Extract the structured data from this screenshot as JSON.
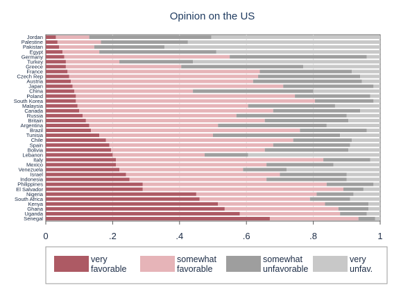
{
  "chart_data": {
    "type": "bar",
    "orientation": "horizontal",
    "stacked": true,
    "title": "Opinion on the US",
    "categories": [
      "Jordan",
      "Palestine",
      "Pakistan",
      "Egypt",
      "Germany",
      "Turkey",
      "Greece",
      "France",
      "Czech Rep",
      "Austria",
      "Japan",
      "China",
      "Poland",
      "South Korea",
      "Malaysia",
      "Canada",
      "Russia",
      "Britain",
      "Argentina",
      "Brazil",
      "Tunisia",
      "Chile",
      "Spain",
      "Bolivia",
      "Lebanon",
      "Italy",
      "Mexico",
      "Venezuela",
      "Israel",
      "Indonesia",
      "Philippines",
      "El Salvador",
      "Nigeria",
      "South Africa",
      "Kenya",
      "Ghana",
      "Uganda",
      "Senegal"
    ],
    "series": [
      {
        "name": "very favorable",
        "color": "#ad5a64",
        "values": [
          0.03,
          0.035,
          0.04,
          0.05,
          0.055,
          0.06,
          0.06,
          0.065,
          0.07,
          0.075,
          0.08,
          0.085,
          0.09,
          0.09,
          0.095,
          0.1,
          0.11,
          0.12,
          0.13,
          0.135,
          0.16,
          0.18,
          0.19,
          0.195,
          0.2,
          0.21,
          0.21,
          0.22,
          0.24,
          0.25,
          0.29,
          0.29,
          0.45,
          0.46,
          0.515,
          0.535,
          0.58,
          0.67
        ]
      },
      {
        "name": "somewhat favorable",
        "color": "#e6b4b8",
        "values": [
          0.1,
          0.13,
          0.105,
          0.11,
          0.495,
          0.16,
          0.345,
          0.575,
          0.565,
          0.545,
          0.63,
          0.355,
          0.655,
          0.715,
          0.51,
          0.58,
          0.46,
          0.535,
          0.385,
          0.625,
          0.34,
          0.56,
          0.49,
          0.46,
          0.275,
          0.62,
          0.45,
          0.37,
          0.46,
          0.41,
          0.55,
          0.6,
          0.36,
          0.33,
          0.32,
          0.34,
          0.3,
          0.265
        ]
      },
      {
        "name": "somewhat unfavorable",
        "color": "#9e9e9e",
        "values": [
          0.365,
          0.26,
          0.21,
          0.35,
          0.41,
          0.22,
          0.365,
          0.275,
          0.305,
          0.325,
          0.27,
          0.36,
          0.225,
          0.175,
          0.26,
          0.26,
          0.33,
          0.25,
          0.325,
          0.2,
          0.38,
          0.175,
          0.23,
          0.25,
          0.13,
          0.14,
          0.2,
          0.13,
          0.2,
          0.24,
          0.14,
          0.06,
          0.11,
          0.12,
          0.13,
          0.09,
          0.08,
          0.05
        ]
      },
      {
        "name": "very unfav.",
        "color": "#c8c8c8",
        "values": [
          0.505,
          0.575,
          0.645,
          0.49,
          0.04,
          0.56,
          0.23,
          0.085,
          0.06,
          0.055,
          0.02,
          0.2,
          0.03,
          0.02,
          0.135,
          0.06,
          0.1,
          0.095,
          0.16,
          0.04,
          0.12,
          0.085,
          0.09,
          0.095,
          0.395,
          0.03,
          0.14,
          0.28,
          0.1,
          0.1,
          0.02,
          0.05,
          0.08,
          0.09,
          0.035,
          0.035,
          0.04,
          0.015
        ]
      }
    ],
    "xlim": [
      0,
      1
    ],
    "xticks": [
      "0",
      ".2",
      ".4",
      ".6",
      ".8",
      "1"
    ],
    "grid": true,
    "legend_position": "bottom",
    "legend": [
      {
        "line1": "very",
        "line2": "favorable"
      },
      {
        "line1": "somewhat",
        "line2": "favorable"
      },
      {
        "line1": "somewhat",
        "line2": "unfavorable"
      },
      {
        "line1": "very",
        "line2": "unfav."
      }
    ]
  }
}
